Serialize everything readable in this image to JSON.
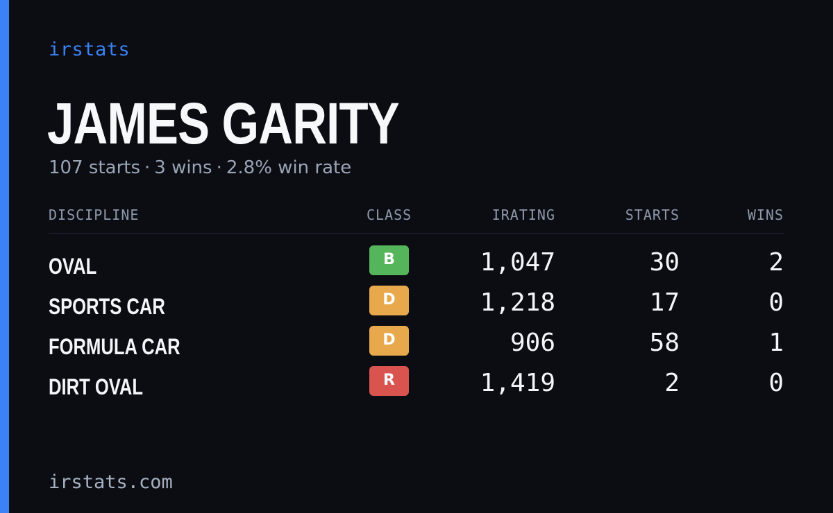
{
  "brand": "irstats",
  "player": {
    "name": "JAMES GARITY",
    "starts_text": "107 starts",
    "wins_text": "3 wins",
    "winrate_text": "2.8% win rate",
    "separator": "·"
  },
  "table": {
    "headers": {
      "discipline": "DISCIPLINE",
      "class": "CLASS",
      "irating": "IRATING",
      "starts": "STARTS",
      "wins": "WINS"
    },
    "rows": [
      {
        "discipline": "OVAL",
        "class": "B",
        "class_color": "#55b55b",
        "irating": "1,047",
        "starts": "30",
        "wins": "2"
      },
      {
        "discipline": "SPORTS CAR",
        "class": "D",
        "class_color": "#e8a84c",
        "irating": "1,218",
        "starts": "17",
        "wins": "0"
      },
      {
        "discipline": "FORMULA CAR",
        "class": "D",
        "class_color": "#e8a84c",
        "irating": "906",
        "starts": "58",
        "wins": "1"
      },
      {
        "discipline": "DIRT OVAL",
        "class": "R",
        "class_color": "#d9534f",
        "irating": "1,419",
        "starts": "2",
        "wins": "0"
      }
    ]
  },
  "footer": "irstats.com",
  "colors": {
    "accent": "#3b82f6",
    "background": "#0b0d13"
  }
}
